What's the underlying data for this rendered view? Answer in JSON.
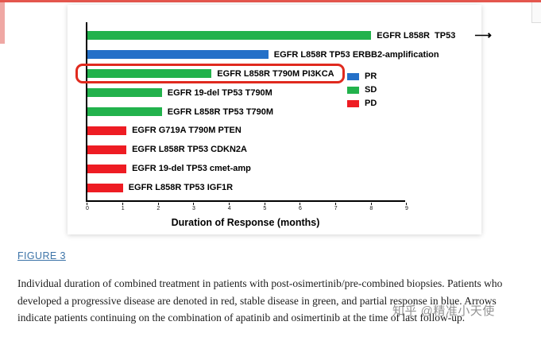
{
  "chart_data": {
    "type": "bar",
    "orientation": "horizontal",
    "title": "",
    "xlabel": "Duration of Response (months)",
    "ylabel": "",
    "xlim": [
      0,
      9
    ],
    "xticks": [
      0,
      1,
      2,
      3,
      4,
      5,
      6,
      7,
      8,
      9
    ],
    "grid": false,
    "legend_position": "right",
    "arrow_glyph": "⟶",
    "highlight_color": "#e02a1e",
    "axis_color": "#000000",
    "legend": [
      {
        "label": "PR",
        "color": "#2470c8"
      },
      {
        "label": "SD",
        "color": "#22b24c"
      },
      {
        "label": "PD",
        "color": "#ee1c23"
      }
    ],
    "bars": [
      {
        "label": "EGFR L858R  TP53",
        "value": 8.0,
        "category": "SD",
        "color": "#22b24c",
        "arrow": true,
        "highlighted": false
      },
      {
        "label": "EGFR L858R TP53 ERBB2-amplification",
        "value": 5.1,
        "category": "PR",
        "color": "#2470c8",
        "arrow": false,
        "highlighted": false
      },
      {
        "label": "EGFR L858R T790M PI3KCA",
        "value": 3.5,
        "category": "SD",
        "color": "#22b24c",
        "arrow": false,
        "highlighted": true
      },
      {
        "label": "EGFR 19-del TP53 T790M",
        "value": 2.1,
        "category": "SD",
        "color": "#22b24c",
        "arrow": false,
        "highlighted": false
      },
      {
        "label": "EGFR L858R TP53 T790M",
        "value": 2.1,
        "category": "SD",
        "color": "#22b24c",
        "arrow": false,
        "highlighted": false
      },
      {
        "label": "EGFR G719A T790M PTEN",
        "value": 1.1,
        "category": "PD",
        "color": "#ee1c23",
        "arrow": false,
        "highlighted": false
      },
      {
        "label": "EGFR L858R TP53 CDKN2A",
        "value": 1.1,
        "category": "PD",
        "color": "#ee1c23",
        "arrow": false,
        "highlighted": false
      },
      {
        "label": "EGFR 19-del TP53 cmet-amp",
        "value": 1.1,
        "category": "PD",
        "color": "#ee1c23",
        "arrow": false,
        "highlighted": false
      },
      {
        "label": "EGFR L858R TP53 IGF1R",
        "value": 1.0,
        "category": "PD",
        "color": "#ee1c23",
        "arrow": false,
        "highlighted": false
      }
    ]
  },
  "caption": {
    "link": "FIGURE 3",
    "text": "Individual duration of combined treatment in patients with post-osimertinib/pre-combined biopsies. Patients who developed a progressive disease are denoted in red, stable disease in green, and partial response in blue. Arrows indicate patients continuing on the combination of apatinib and osimertinib at the time of last follow-up."
  },
  "page": {
    "watermark": "知乎 @精准小天使",
    "accent_color": "#e4574e"
  }
}
